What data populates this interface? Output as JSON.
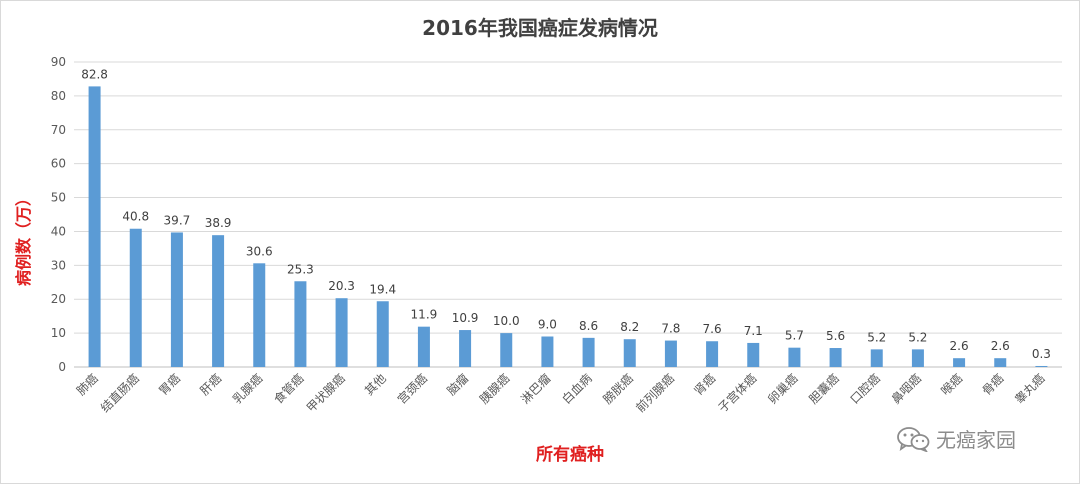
{
  "chart_data": {
    "type": "bar",
    "title": "2016年我国癌症发病情况",
    "xlabel": "所有癌种",
    "ylabel": "病例数（万）",
    "ylim": [
      0,
      90
    ],
    "yticks": [
      0,
      10,
      20,
      30,
      40,
      50,
      60,
      70,
      80,
      90
    ],
    "grid": true,
    "legend": "none",
    "categories": [
      "肺癌",
      "结直肠癌",
      "胃癌",
      "肝癌",
      "乳腺癌",
      "食管癌",
      "甲状腺癌",
      "其他",
      "宫颈癌",
      "脑瘤",
      "胰腺癌",
      "淋巴瘤",
      "白血病",
      "膀胱癌",
      "前列腺癌",
      "肾癌",
      "子宫体癌",
      "卵巢癌",
      "胆囊癌",
      "口腔癌",
      "鼻咽癌",
      "喉癌",
      "骨癌",
      "睾丸癌"
    ],
    "values": [
      82.8,
      40.8,
      39.7,
      38.9,
      30.6,
      25.3,
      20.3,
      19.4,
      11.9,
      10.9,
      10.0,
      9.0,
      8.6,
      8.2,
      7.8,
      7.6,
      7.1,
      5.7,
      5.6,
      5.2,
      5.2,
      2.6,
      2.6,
      0.3
    ],
    "data_labels": [
      "82.8",
      "40.8",
      "39.7",
      "38.9",
      "30.6",
      "25.3",
      "20.3",
      "19.4",
      "11.9",
      "10.9",
      "10.0",
      "9.0",
      "8.6",
      "8.2",
      "7.8",
      "7.6",
      "7.1",
      "5.7",
      "5.6",
      "5.2",
      "5.2",
      "2.6",
      "2.6",
      "0.3"
    ]
  },
  "colors": {
    "bar": "#5b9bd5",
    "axis_title": "#e02020",
    "grid": "#d9d9d9"
  },
  "watermark": {
    "text": "无癌家园",
    "icon": "wechat-icon"
  }
}
